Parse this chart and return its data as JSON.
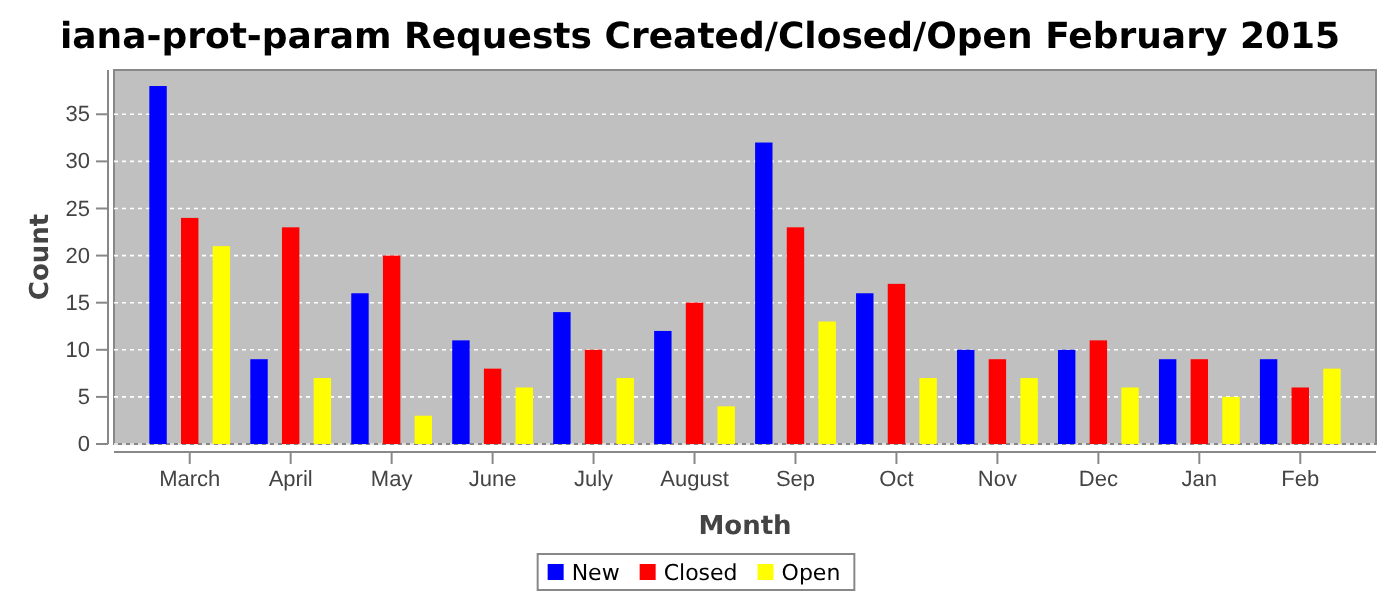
{
  "chart_data": {
    "type": "bar",
    "title": "iana-prot-param Requests Created/Closed/Open February 2015",
    "xlabel": "Month",
    "ylabel": "Count",
    "categories": [
      "March",
      "April",
      "May",
      "June",
      "July",
      "August",
      "Sep",
      "Oct",
      "Nov",
      "Dec",
      "Jan",
      "Feb"
    ],
    "series": [
      {
        "name": "New",
        "color": "#0000ff",
        "values": [
          38,
          9,
          16,
          11,
          14,
          12,
          32,
          16,
          10,
          10,
          9,
          9
        ]
      },
      {
        "name": "Closed",
        "color": "#ff0000",
        "values": [
          24,
          23,
          20,
          8,
          10,
          15,
          23,
          17,
          9,
          11,
          9,
          6
        ]
      },
      {
        "name": "Open",
        "color": "#ffff00",
        "values": [
          21,
          7,
          3,
          6,
          7,
          4,
          13,
          7,
          7,
          6,
          5,
          8
        ]
      }
    ],
    "ylim": [
      0,
      39.7
    ],
    "yticks": [
      0,
      5,
      10,
      15,
      20,
      25,
      30,
      35
    ],
    "grid": "y",
    "legend": "bottom"
  }
}
